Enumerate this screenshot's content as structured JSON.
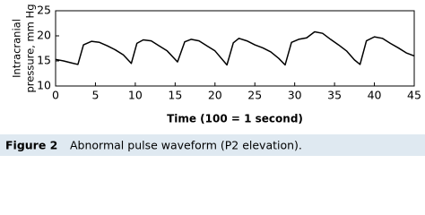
{
  "chart_data": {
    "type": "line",
    "xlabel": "Time (100 = 1 second)",
    "ylabel": [
      "Intracranial",
      "pressure, mm Hg"
    ],
    "caption_label": "Figure 2",
    "caption": "Abnormal pulse waveform (P2 elevation).",
    "xlim": [
      0,
      45
    ],
    "xticks": [
      0,
      5,
      10,
      15,
      20,
      25,
      30,
      35,
      40,
      45
    ],
    "ylim": [
      10,
      25
    ],
    "yticks": [
      10,
      15,
      20,
      25
    ],
    "color": "#000000",
    "x": [
      0,
      1,
      2,
      2.8,
      3.5,
      4.5,
      5.5,
      6.5,
      7.5,
      8.5,
      9.5,
      10.2,
      11,
      12,
      13,
      14,
      15.3,
      16.2,
      17,
      18,
      19,
      20,
      21.5,
      22.3,
      23,
      24,
      25,
      26,
      27,
      28,
      28.8,
      29.6,
      30.5,
      31.5,
      32.5,
      33.5,
      34.5,
      35.5,
      36.5,
      37.5,
      38.2,
      39,
      40,
      41,
      42,
      43,
      44,
      45
    ],
    "values": [
      15.3,
      15.0,
      14.6,
      14.3,
      18.2,
      18.9,
      18.7,
      18.0,
      17.2,
      16.2,
      14.5,
      18.5,
      19.2,
      19.0,
      18.0,
      17.0,
      14.8,
      18.8,
      19.3,
      19.0,
      18.0,
      17.0,
      14.2,
      18.6,
      19.5,
      19.0,
      18.2,
      17.6,
      16.8,
      15.5,
      14.2,
      18.7,
      19.3,
      19.6,
      20.8,
      20.5,
      19.3,
      18.2,
      17.0,
      15.2,
      14.3,
      19.0,
      19.8,
      19.5,
      18.5,
      17.6,
      16.6,
      16.0
    ]
  }
}
